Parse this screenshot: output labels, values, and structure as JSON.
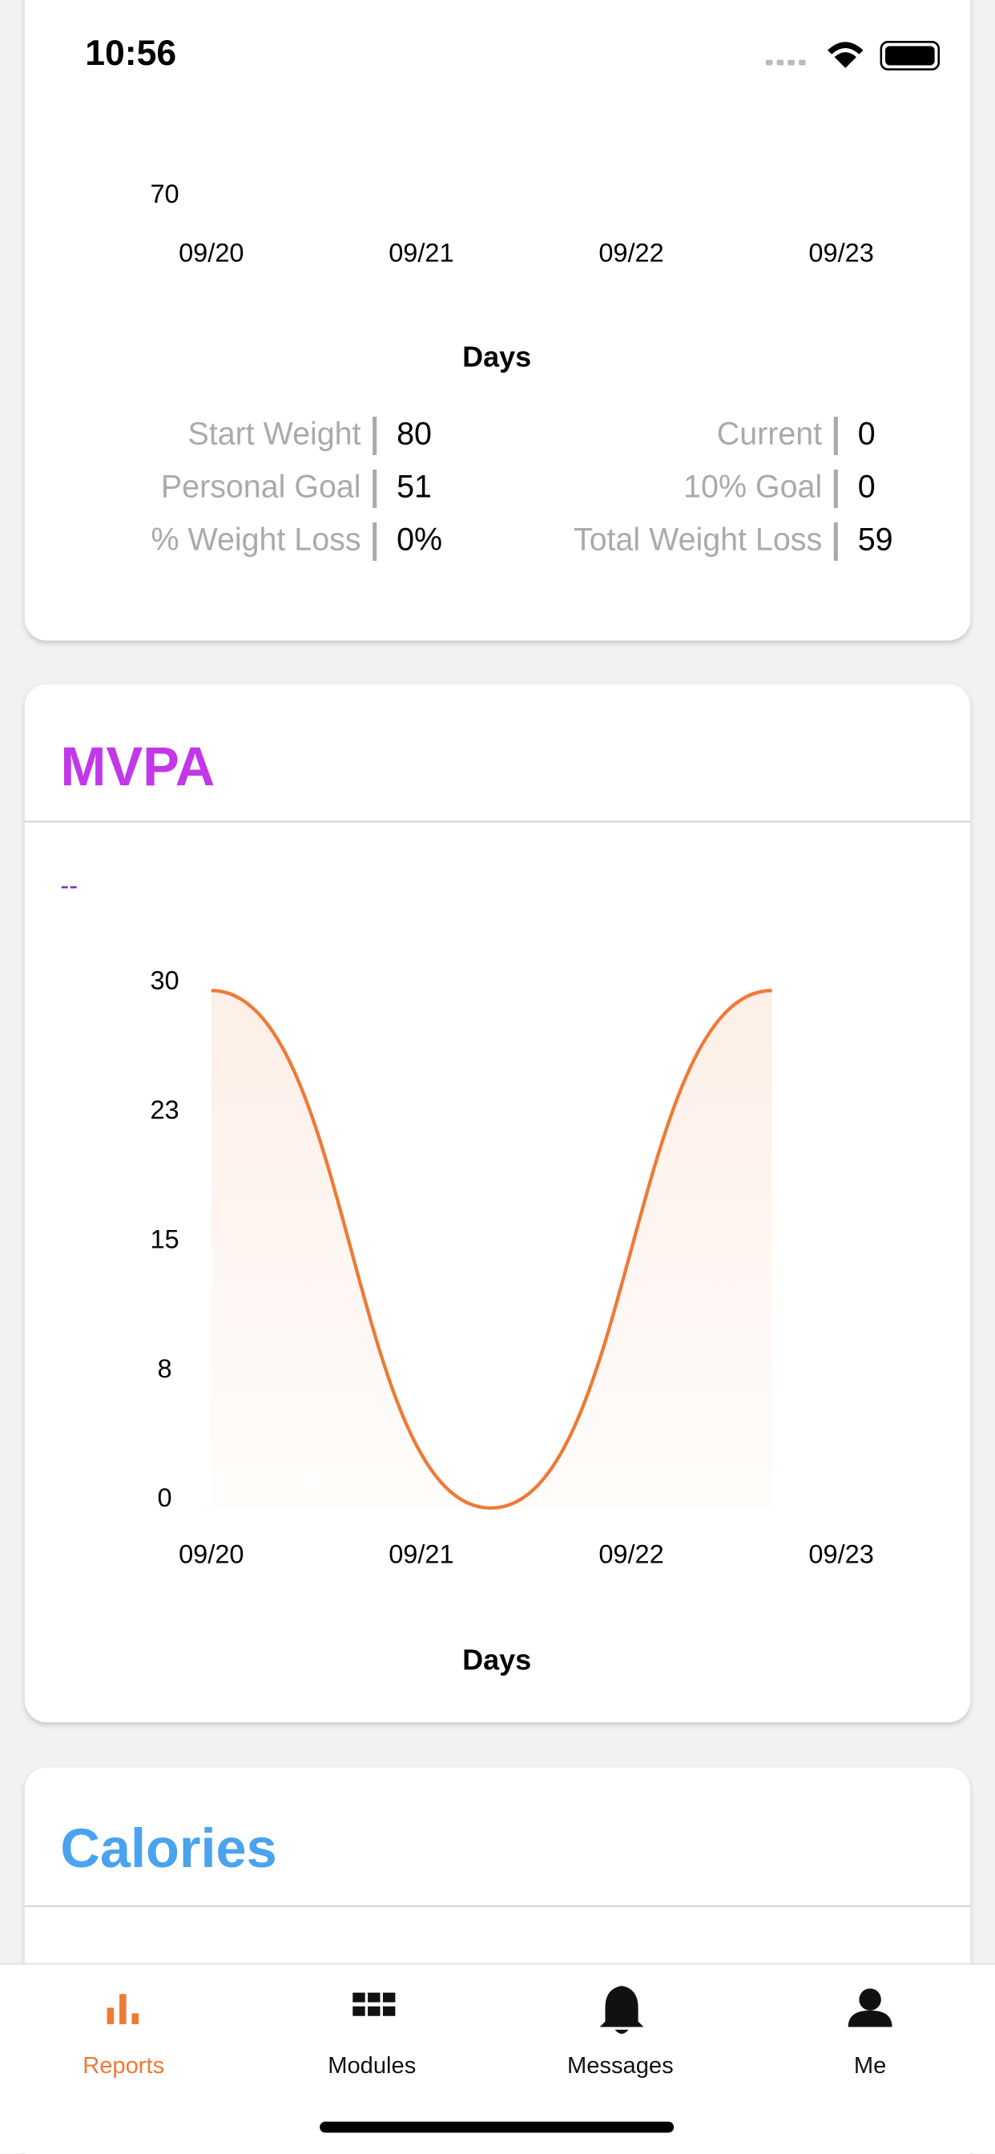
{
  "status_bar": {
    "time": "10:56"
  },
  "weight_card": {
    "chart": {
      "type": "line",
      "yticks": [
        70
      ],
      "xticks": [
        "09/20",
        "09/21",
        "09/22",
        "09/23"
      ],
      "x_label": "Days"
    },
    "stats": [
      {
        "label": "Start Weight",
        "value": "80"
      },
      {
        "label": "Personal Goal",
        "value": "51"
      },
      {
        "label": "% Weight Loss",
        "value": "0%"
      },
      {
        "label": "Current",
        "value": "0"
      },
      {
        "label": "10% Goal",
        "value": "0"
      },
      {
        "label": "Total Weight Loss",
        "value": "59"
      }
    ]
  },
  "mvpa_card": {
    "title": "MVPA",
    "summary": "--",
    "chart_data": {
      "type": "line",
      "x_label": "Days",
      "xlim": [
        0,
        3
      ],
      "xticks": [
        {
          "value": 0,
          "label": "09/20"
        },
        {
          "value": 1,
          "label": "09/21"
        },
        {
          "value": 2,
          "label": "09/22"
        },
        {
          "value": 3,
          "label": "09/23"
        }
      ],
      "ylim": [
        0,
        30
      ],
      "yticks": [
        0,
        {
          "value": 7.5,
          "label": "8"
        },
        15,
        {
          "value": 22.5,
          "label": "23"
        },
        30
      ],
      "series": [
        {
          "name": "MVPA",
          "color": "#ee7a35",
          "x": [
            0,
            1.33,
            2.67
          ],
          "values": [
            30,
            0,
            30
          ]
        }
      ]
    }
  },
  "calories_card": {
    "title": "Calories"
  },
  "tab_bar": [
    "Reports",
    "Modules",
    "Messages",
    "Me"
  ]
}
